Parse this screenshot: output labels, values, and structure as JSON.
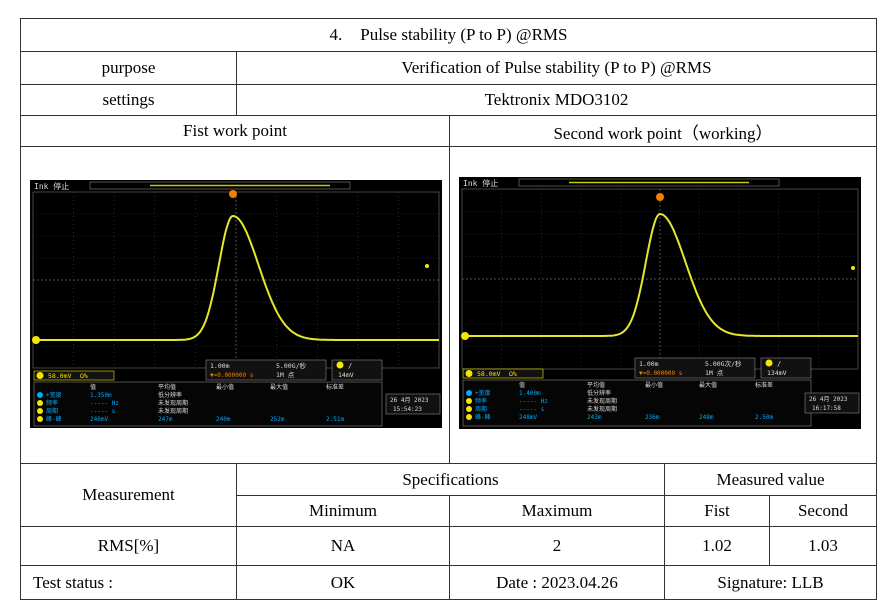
{
  "title": {
    "number": "4.",
    "text": "Pulse stability (P to P) @RMS"
  },
  "purpose": {
    "label": "purpose",
    "value": "Verification of Pulse stability (P to P) @RMS"
  },
  "settings": {
    "label": "settings",
    "value": "Tektronix MDO3102"
  },
  "work_points": {
    "first": "Fist work point",
    "second": "Second work point（working）"
  },
  "scope1": {
    "header": "Ink 停止",
    "ch_scale": "58.0mV",
    "ch_bw": "Ω%",
    "timebase": "1.00m",
    "samplerate": "5.00G/秒",
    "trig_level": "14mV",
    "trig_pos": "▼=0.000000 s",
    "points": "1M 点",
    "meas_head": [
      "值",
      "平均值",
      "最小值",
      "最大值",
      "标准差"
    ],
    "meas_rows": [
      {
        "ch": "2",
        "name": "+宽度",
        "value": "1.350m",
        "note": "低分辨率"
      },
      {
        "ch": "1",
        "name": "频率",
        "value": "----- Hz",
        "note": "未发现周期"
      },
      {
        "ch": "1",
        "name": "周期",
        "value": "----- s",
        "note": "未发现周期"
      },
      {
        "ch": "1",
        "name": "峰-峰",
        "value": "246mV",
        "avg": "247m",
        "min": "240m",
        "max": "252m",
        "std": "2.51m"
      }
    ],
    "date": "26 4月 2023",
    "time": "15:54:23"
  },
  "scope2": {
    "header": "Ink 停止",
    "ch_scale": "58.0mV",
    "ch_bw": "Ω%",
    "timebase": "1.00m",
    "samplerate": "5.00G次/秒",
    "trig_level": "134mV",
    "trig_pos": "▼=0.000000 s",
    "points": "1M 点",
    "meas_head": [
      "值",
      "平均值",
      "最小值",
      "最大值",
      "标准差"
    ],
    "meas_rows": [
      {
        "ch": "2",
        "name": "+宽度",
        "value": "1.400m",
        "note": "低分辨率"
      },
      {
        "ch": "1",
        "name": "频率",
        "value": "----- Hz",
        "note": "未发现周期"
      },
      {
        "ch": "1",
        "name": "周期",
        "value": "----- s",
        "note": "未发现周期"
      },
      {
        "ch": "1",
        "name": "峰-峰",
        "value": "248mV",
        "avg": "243m",
        "min": "236m",
        "max": "248m",
        "std": "2.50m"
      }
    ],
    "date": "26 4月 2023",
    "time": "16:17:58"
  },
  "results": {
    "measurement": "Measurement",
    "specifications": "Specifications",
    "measured_value": "Measured value",
    "minimum": "Minimum",
    "maximum": "Maximum",
    "fist": "Fist",
    "second": "Second",
    "row_label": "RMS[%]",
    "min_value": "NA",
    "max_value": "2",
    "fist_value": "1.02",
    "second_value": "1.03"
  },
  "footer": {
    "test_status_label": "Test status :",
    "test_status_value": "OK",
    "date": "Date : 2023.04.26",
    "signature": "Signature: LLB"
  },
  "colors": {
    "trace": "#e6e62e",
    "grid": "#666666",
    "bg": "#000000",
    "ch1": "#f5e600",
    "ch2": "#00aaff"
  }
}
